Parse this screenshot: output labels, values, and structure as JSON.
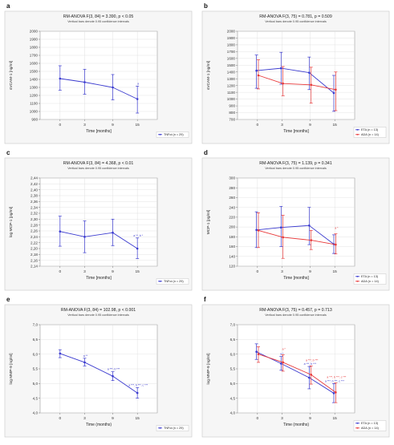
{
  "colors": {
    "series1": "#3a3acf",
    "series2": "#e8393a",
    "panel_bg": "#f6f6f6",
    "grid": "#dcdcdc",
    "frame": "#c8c8c8"
  },
  "chart_data": [
    {
      "panel": "a",
      "type": "line",
      "title": "RM-ANOVA F(3, 84) = 3.390, p < 0.05",
      "subtitle": "Vertical bars denote 0.95 confidence intervals",
      "xlabel": "Time [months]",
      "ylabel": "sVCAM-1 [ng/ml]",
      "categories": [
        "0",
        "3",
        "9",
        "15"
      ],
      "ylim": [
        900,
        2000
      ],
      "yticks": [
        "900",
        "1000",
        "1100",
        "1200",
        "1300",
        "1400",
        "1500",
        "1600",
        "1700",
        "1800",
        "1900",
        "2000"
      ],
      "grid": true,
      "legend_position": "bottom-right",
      "series": [
        {
          "name": "TNFαi (n = 29)",
          "values": [
            1410,
            1365,
            1300,
            1155
          ],
          "ci_low": [
            1265,
            1215,
            1145,
            980
          ],
          "ci_high": [
            1570,
            1525,
            1460,
            1315
          ],
          "annotations": [
            "",
            "",
            "",
            "a"
          ]
        }
      ]
    },
    {
      "panel": "b",
      "type": "line",
      "title": "RM-ANOVA F(3, 75) = 0.781, p = 0.509",
      "subtitle": "Vertical bars denote 0.95 confidence intervals",
      "xlabel": "Time [months]",
      "ylabel": "sVCAM-1 [ng/ml]",
      "categories": [
        "0",
        "3",
        "9",
        "15"
      ],
      "ylim": [
        700,
        2000
      ],
      "yticks": [
        "700",
        "800",
        "900",
        "1000",
        "1100",
        "1200",
        "1300",
        "1400",
        "1500",
        "1600",
        "1700",
        "1800",
        "1900",
        "2000"
      ],
      "grid": true,
      "legend_position": "bottom-right",
      "series": [
        {
          "name": "ETA (n = 13)",
          "values": [
            1420,
            1455,
            1390,
            1090
          ],
          "ci_low": [
            1160,
            1220,
            1140,
            820
          ],
          "ci_high": [
            1650,
            1690,
            1620,
            1350
          ]
        },
        {
          "name": "ADA (n = 14)",
          "values": [
            1350,
            1230,
            1210,
            1140
          ],
          "ci_low": [
            1150,
            1050,
            940,
            830
          ],
          "ci_high": [
            1580,
            1480,
            1470,
            1400
          ]
        }
      ]
    },
    {
      "panel": "c",
      "type": "line",
      "title": "RM-ANOVA F(3, 84) = 4.368, p < 0.01",
      "subtitle": "Vertical bars denote 0.95 confidence intervals",
      "xlabel": "Time [months]",
      "ylabel": "log MCP-1 [pg/ml]",
      "categories": [
        "0",
        "3",
        "9",
        "15"
      ],
      "ylim": [
        2.14,
        2.44
      ],
      "yticks": [
        "2,14",
        "2,16",
        "2,18",
        "2,20",
        "2,22",
        "2,24",
        "2,26",
        "2,28",
        "2,30",
        "2,32",
        "2,34",
        "2,36",
        "2,38",
        "2,40",
        "2,42",
        "2,44"
      ],
      "grid": true,
      "legend_position": "bottom-right",
      "series": [
        {
          "name": "TNFαi (n = 29)",
          "values": [
            2.258,
            2.24,
            2.254,
            2.2
          ],
          "ci_low": [
            2.208,
            2.186,
            2.21,
            2.166
          ],
          "ci_high": [
            2.31,
            2.294,
            2.3,
            2.236
          ],
          "annotations": [
            "",
            "",
            "",
            "a **, b *"
          ]
        }
      ]
    },
    {
      "panel": "d",
      "type": "line",
      "title": "RM-ANOVA F(3, 75) = 1.139, p = 0.341",
      "subtitle": "Vertical bars denote 0.95 confidence intervals",
      "xlabel": "Time [months]",
      "ylabel": "MCP-1 [pg/ml]",
      "categories": [
        "0",
        "3",
        "9",
        "15"
      ],
      "ylim": [
        120,
        300
      ],
      "yticks": [
        "120",
        "140",
        "160",
        "180",
        "200",
        "220",
        "240",
        "260",
        "280",
        "300"
      ],
      "grid": true,
      "legend_position": "bottom-right",
      "series": [
        {
          "name": "ETA (n = 13)",
          "values": [
            194,
            199,
            203,
            165
          ],
          "ci_low": [
            158,
            160,
            164,
            146
          ],
          "ci_high": [
            231,
            242,
            240,
            184
          ]
        },
        {
          "name": "ADA (n = 14)",
          "values": [
            193,
            179,
            173,
            164
          ],
          "ci_low": [
            158,
            136,
            154,
            145
          ],
          "ci_high": [
            229,
            224,
            193,
            186
          ],
          "annotations": [
            "",
            "",
            "",
            "a *"
          ]
        }
      ]
    },
    {
      "panel": "e",
      "type": "line",
      "title": "RM-ANOVA F(3, 84) = 102.98, p < 0.001",
      "subtitle": "Vertical bars denote 0.95 confidence intervals",
      "xlabel": "Time (months)",
      "ylabel": "log MMP-9 [ng/ml]",
      "categories": [
        "0",
        "3",
        "9",
        "15"
      ],
      "ylim": [
        4.0,
        7.0
      ],
      "yticks": [
        "4,0",
        "4,5",
        "5,0",
        "5,5",
        "6,0",
        "6,5",
        "7,0"
      ],
      "grid": true,
      "legend_position": "bottom-right",
      "series": [
        {
          "name": "TNFαi (n = 29)",
          "values": [
            6.02,
            5.72,
            5.25,
            4.68
          ],
          "ci_low": [
            5.88,
            5.6,
            5.1,
            4.5
          ],
          "ci_high": [
            6.15,
            5.86,
            5.4,
            4.86
          ],
          "annotations": [
            "",
            "a **",
            "a ***, b ***",
            "a ***, b ***, c ***"
          ]
        }
      ]
    },
    {
      "panel": "f",
      "type": "line",
      "title": "RM-ANOVA F(3, 75) = 0.457, p = 0.713",
      "subtitle": "Vertical bars denote 0.95 confidence intervals",
      "xlabel": "Time (months)",
      "ylabel": "log MMP-9 [ng/ml]",
      "categories": [
        "0",
        "3",
        "9",
        "15"
      ],
      "ylim": [
        4.0,
        7.0
      ],
      "yticks": [
        "4,0",
        "4,5",
        "5,0",
        "5,5",
        "6,0",
        "6,5",
        "7,0"
      ],
      "grid": true,
      "legend_position": "bottom-right",
      "series": [
        {
          "name": "ETA (n = 13)",
          "values": [
            6.08,
            5.68,
            5.2,
            4.67
          ],
          "ci_low": [
            5.82,
            5.45,
            4.82,
            4.35
          ],
          "ci_high": [
            6.35,
            5.92,
            5.58,
            5.0
          ],
          "annotations": [
            "",
            "a *",
            "a ***, b ***",
            "a ***, b ***, c ***"
          ]
        },
        {
          "name": "ADA (n = 14)",
          "values": [
            6.0,
            5.72,
            5.3,
            4.7
          ],
          "ci_low": [
            5.72,
            5.42,
            4.98,
            4.35
          ],
          "ci_high": [
            6.25,
            5.98,
            5.6,
            5.02
          ],
          "annotations": [
            "",
            "a *",
            "a ***, b ***",
            "a ***, b ***, c ***"
          ]
        }
      ]
    }
  ]
}
